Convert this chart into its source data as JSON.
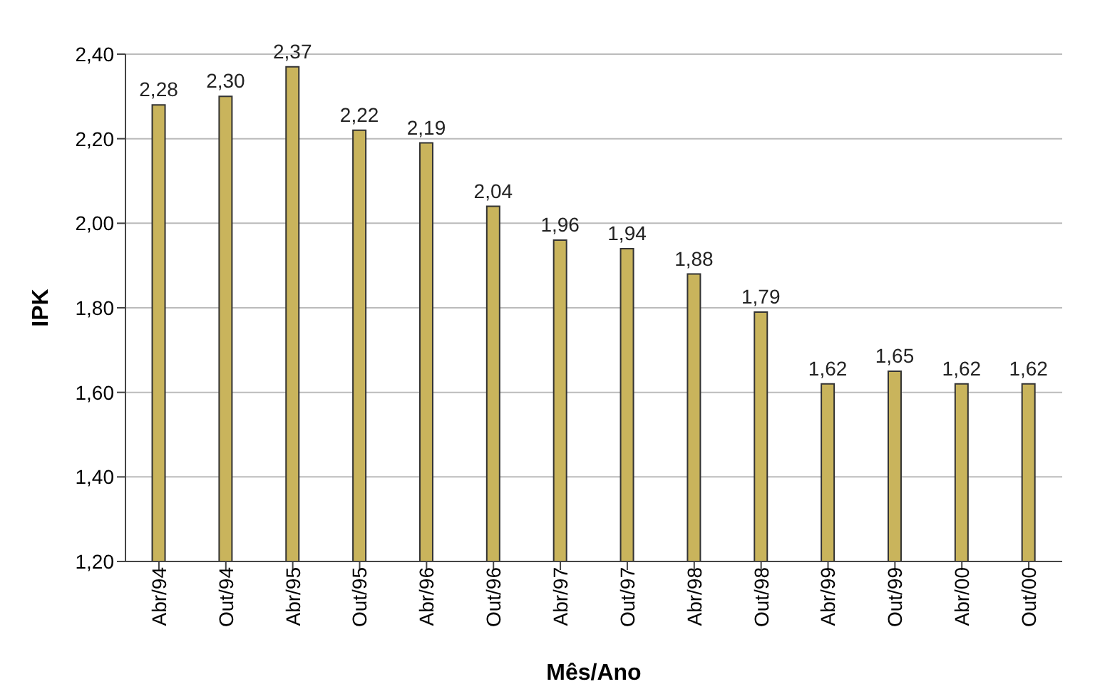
{
  "chart_data": {
    "type": "bar",
    "xlabel": "Mês/Ano",
    "ylabel": "IPK",
    "categories": [
      "Abr/94",
      "Out/94",
      "Abr/95",
      "Out/95",
      "Abr/96",
      "Out/96",
      "Abr/97",
      "Out/97",
      "Abr/98",
      "Out/98",
      "Abr/99",
      "Out/99",
      "Abr/00",
      "Out/00"
    ],
    "values": [
      2.28,
      2.3,
      2.37,
      2.22,
      2.19,
      2.04,
      1.96,
      1.94,
      1.88,
      1.79,
      1.62,
      1.65,
      1.62,
      1.62
    ],
    "value_labels": [
      "2,28",
      "2,30",
      "2,37",
      "2,22",
      "2,19",
      "2,04",
      "1,96",
      "1,94",
      "1,88",
      "1,79",
      "1,62",
      "1,65",
      "1,62",
      "1,62"
    ],
    "color": "#c9b45c",
    "ylim": [
      1.2,
      2.4
    ],
    "yticks": [
      {
        "value": 1.2,
        "label": "1,20"
      },
      {
        "value": 1.4,
        "label": "1,40"
      },
      {
        "value": 1.6,
        "label": "1,60"
      },
      {
        "value": 1.8,
        "label": "1,80"
      },
      {
        "value": 2.0,
        "label": "2,00"
      },
      {
        "value": 2.2,
        "label": "2,20"
      },
      {
        "value": 2.4,
        "label": "2,40"
      }
    ],
    "grid": "y"
  }
}
